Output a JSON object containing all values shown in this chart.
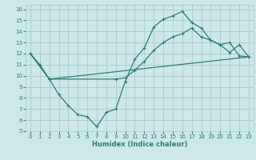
{
  "xlabel": "Humidex (Indice chaleur)",
  "background_color": "#cce8e8",
  "grid_color": "#aacccc",
  "line_color": "#2e7d7d",
  "xlim": [
    -0.5,
    23.5
  ],
  "ylim": [
    5,
    16.4
  ],
  "xticks": [
    0,
    1,
    2,
    3,
    4,
    5,
    6,
    7,
    8,
    9,
    10,
    11,
    12,
    13,
    14,
    15,
    16,
    17,
    18,
    19,
    20,
    21,
    22,
    23
  ],
  "yticks": [
    5,
    6,
    7,
    8,
    9,
    10,
    11,
    12,
    13,
    14,
    15,
    16
  ],
  "series1_x": [
    0,
    1,
    2,
    3,
    4,
    5,
    6,
    7,
    8,
    9,
    10,
    11,
    12,
    13,
    14,
    15,
    16,
    17,
    18,
    19,
    20,
    21,
    22,
    23
  ],
  "series1_y": [
    12,
    11,
    9.7,
    8.3,
    7.3,
    6.5,
    6.3,
    5.4,
    6.7,
    7.0,
    9.5,
    11.5,
    12.5,
    14.4,
    15.1,
    15.4,
    15.8,
    14.8,
    14.3,
    13.2,
    12.8,
    13.0,
    11.8,
    11.7
  ],
  "series2_x": [
    0,
    2,
    23
  ],
  "series2_y": [
    12,
    9.7,
    11.7
  ],
  "series3_x": [
    0,
    2,
    9,
    10,
    11,
    12,
    13,
    14,
    15,
    16,
    17,
    18,
    19,
    20,
    21,
    22,
    23
  ],
  "series3_y": [
    12,
    9.7,
    9.7,
    9.8,
    10.5,
    11.3,
    12.3,
    13.0,
    13.5,
    13.8,
    14.3,
    13.5,
    13.2,
    12.8,
    12.1,
    12.8,
    11.7
  ]
}
